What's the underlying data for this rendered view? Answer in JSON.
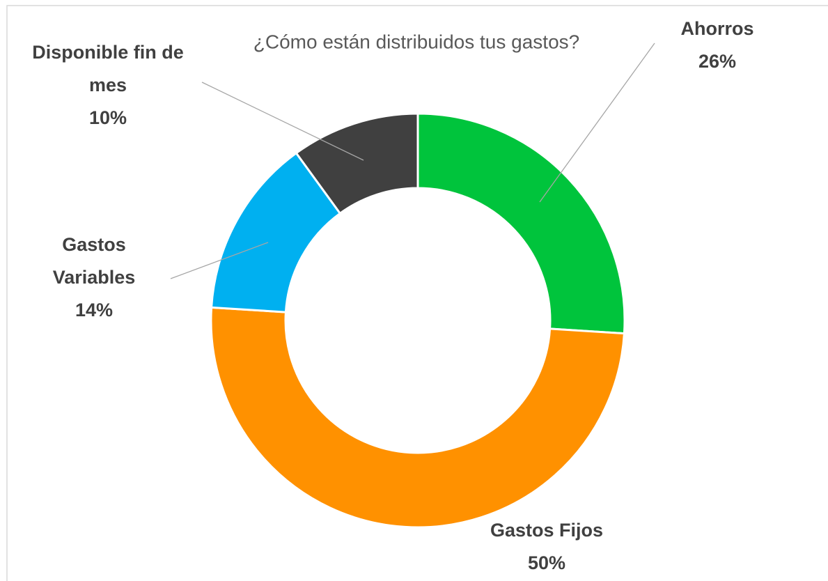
{
  "chart_data": {
    "type": "donut",
    "title": "¿Cómo están distribuidos tus gastos?",
    "categories": [
      "Ahorros",
      "Gastos Fijos",
      "Gastos Variables",
      "Disponible fin de mes"
    ],
    "values": [
      26,
      50,
      14,
      10
    ],
    "value_labels": [
      "26%",
      "50%",
      "14%",
      "10%"
    ],
    "colors": [
      "#00c43c",
      "#ff9100",
      "#00b0f0",
      "#404040"
    ]
  }
}
